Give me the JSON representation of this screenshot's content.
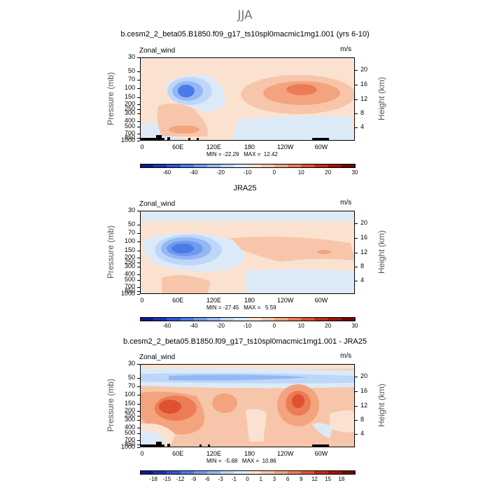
{
  "suptitle": "JJA",
  "chart_data": [
    {
      "type": "heatmap",
      "title": "b.cesm2_2_beta05.B1850.f09_g17_ts10spl0macmic1mg1.001 (yrs 6-10)",
      "corner_left": "Zonal_wind",
      "corner_right": "m/s",
      "xlabel": "",
      "ylabel": "Pressure (mb)",
      "ylabel_right": "Height (km)",
      "x_ticks": [
        "0",
        "60E",
        "120E",
        "180",
        "120W",
        "60W"
      ],
      "y_ticks": [
        "30",
        "50",
        "70",
        "100",
        "150",
        "200",
        "250",
        "300",
        "400",
        "500",
        "700",
        "850",
        "1000"
      ],
      "y_ticks_right": [
        "20",
        "16",
        "12",
        "8",
        "4"
      ],
      "stats": "MIN = -22.29   MAX =  12.42",
      "min": -22.29,
      "max": 12.42,
      "colorbar_levels": [
        "-60",
        "-40",
        "-20",
        "-10",
        "0",
        "10",
        "20",
        "30"
      ],
      "colorbar_colors": [
        "#0a1c8c",
        "#1c34b4",
        "#2e56d8",
        "#4c7ae8",
        "#6f9af0",
        "#94b8f4",
        "#bed6f8",
        "#dceaf8",
        "#fbe2d0",
        "#f7c6aa",
        "#f3a47e",
        "#ec7c56",
        "#de5230",
        "#c42a14",
        "#9a1408",
        "#6e0804"
      ]
    },
    {
      "type": "heatmap",
      "title": "JRA25",
      "corner_left": "Zonal_wind",
      "corner_right": "m/s",
      "xlabel": "",
      "ylabel": "Pressure (mb)",
      "ylabel_right": "Height (km)",
      "x_ticks": [
        "0",
        "60E",
        "120E",
        "180",
        "120W",
        "60W"
      ],
      "y_ticks": [
        "30",
        "50",
        "70",
        "100",
        "150",
        "200",
        "250",
        "300",
        "400",
        "500",
        "700",
        "850",
        "1000"
      ],
      "y_ticks_right": [
        "20",
        "16",
        "12",
        "8",
        "4"
      ],
      "stats": "MIN = -27.45   MAX =   5.59",
      "min": -27.45,
      "max": 5.59,
      "colorbar_levels": [
        "-60",
        "-40",
        "-20",
        "-10",
        "0",
        "10",
        "20",
        "30"
      ],
      "colorbar_colors": [
        "#0a1c8c",
        "#1c34b4",
        "#2e56d8",
        "#4c7ae8",
        "#6f9af0",
        "#94b8f4",
        "#bed6f8",
        "#dceaf8",
        "#fbe2d0",
        "#f7c6aa",
        "#f3a47e",
        "#ec7c56",
        "#de5230",
        "#c42a14",
        "#9a1408",
        "#6e0804"
      ]
    },
    {
      "type": "heatmap",
      "title": "b.cesm2_2_beta05.B1850.f09_g17_ts10spl0macmic1mg1.001 - JRA25",
      "corner_left": "Zonal_wind",
      "corner_right": "m/s",
      "xlabel": "",
      "ylabel": "Pressure (mb)",
      "ylabel_right": "Height (km)",
      "x_ticks": [
        "0",
        "60E",
        "120E",
        "180",
        "120W",
        "60W"
      ],
      "y_ticks": [
        "30",
        "50",
        "70",
        "100",
        "150",
        "200",
        "250",
        "300",
        "400",
        "500",
        "700",
        "850",
        "1000"
      ],
      "y_ticks_right": [
        "20",
        "16",
        "12",
        "8",
        "4"
      ],
      "stats": "MIN =  -5.68   MAX =  10.86",
      "min": -5.68,
      "max": 10.86,
      "colorbar_levels": [
        "-18",
        "-15",
        "-12",
        "-9",
        "-6",
        "-3",
        "-1",
        "0",
        "1",
        "3",
        "6",
        "9",
        "12",
        "15",
        "18"
      ],
      "colorbar_colors": [
        "#0a1c8c",
        "#1c34b4",
        "#2e56d8",
        "#4c7ae8",
        "#6f9af0",
        "#94b8f4",
        "#bed6f8",
        "#dceaf8",
        "#fbe2d0",
        "#f7c6aa",
        "#f3a47e",
        "#ec7c56",
        "#de5230",
        "#c42a14",
        "#9a1408",
        "#6e0804"
      ]
    }
  ]
}
